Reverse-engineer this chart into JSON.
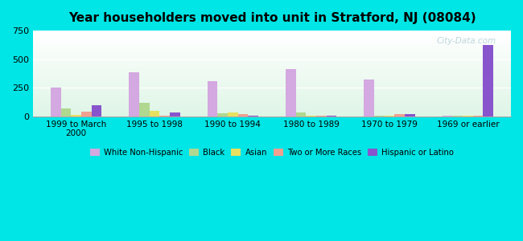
{
  "categories": [
    "1999 to March\n2000",
    "1995 to 1998",
    "1990 to 1994",
    "1980 to 1989",
    "1970 to 1979",
    "1969 or earlier"
  ],
  "series": {
    "White Non-Hispanic": [
      252,
      385,
      310,
      415,
      320,
      10
    ],
    "Black": [
      70,
      120,
      28,
      38,
      5,
      8
    ],
    "Asian": [
      15,
      52,
      38,
      5,
      5,
      5
    ],
    "Two or More Races": [
      42,
      10,
      18,
      5,
      18,
      5
    ],
    "Hispanic or Latino": [
      100,
      32,
      10,
      10,
      18,
      625
    ]
  },
  "colors": {
    "White Non-Hispanic": "#d4a8e0",
    "Black": "#b0d890",
    "Asian": "#e8e060",
    "Two or More Races": "#f0a090",
    "Hispanic or Latino": "#8855cc"
  },
  "title": "Year householders moved into unit in Stratford, NJ (08084)",
  "ylim": [
    0,
    750
  ],
  "yticks": [
    0,
    250,
    500,
    750
  ],
  "outer_bg": "#00e5e5",
  "watermark": "City-Data.com",
  "bar_width": 0.13
}
